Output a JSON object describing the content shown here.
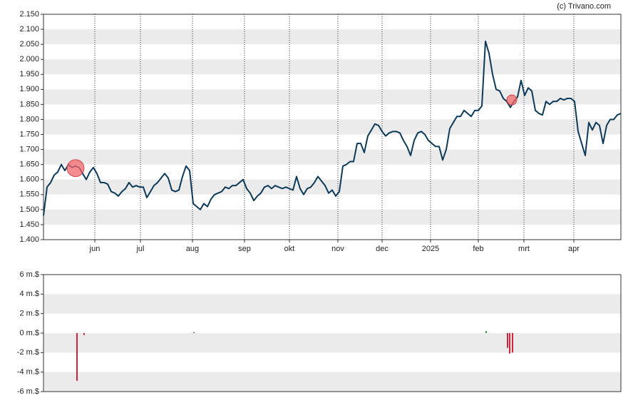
{
  "chart_data": [
    {
      "type": "line",
      "credit": "(c) Trivano.com",
      "color": "#0e3a5a",
      "values": [
        1.48,
        1.575,
        1.59,
        1.615,
        1.625,
        1.65,
        1.63,
        1.65,
        1.64,
        1.645,
        1.64,
        1.62,
        1.6,
        1.625,
        1.64,
        1.62,
        1.59,
        1.59,
        1.585,
        1.56,
        1.555,
        1.545,
        1.56,
        1.57,
        1.59,
        1.575,
        1.58,
        1.575,
        1.575,
        1.54,
        1.56,
        1.58,
        1.59,
        1.605,
        1.62,
        1.605,
        1.565,
        1.56,
        1.565,
        1.61,
        1.645,
        1.63,
        1.52,
        1.51,
        1.5,
        1.52,
        1.51,
        1.535,
        1.55,
        1.555,
        1.56,
        1.575,
        1.57,
        1.58,
        1.58,
        1.59,
        1.6,
        1.57,
        1.555,
        1.53,
        1.545,
        1.555,
        1.575,
        1.58,
        1.57,
        1.58,
        1.575,
        1.57,
        1.575,
        1.57,
        1.565,
        1.61,
        1.57,
        1.55,
        1.57,
        1.575,
        1.59,
        1.61,
        1.595,
        1.58,
        1.555,
        1.565,
        1.545,
        1.56,
        1.645,
        1.65,
        1.66,
        1.66,
        1.72,
        1.72,
        1.69,
        1.745,
        1.765,
        1.785,
        1.78,
        1.76,
        1.745,
        1.755,
        1.76,
        1.76,
        1.755,
        1.73,
        1.71,
        1.68,
        1.73,
        1.755,
        1.76,
        1.75,
        1.73,
        1.72,
        1.71,
        1.71,
        1.665,
        1.7,
        1.77,
        1.79,
        1.81,
        1.81,
        1.83,
        1.82,
        1.81,
        1.83,
        1.83,
        1.845,
        2.06,
        2.02,
        1.95,
        1.9,
        1.895,
        1.87,
        1.86,
        1.84,
        1.86,
        1.875,
        1.93,
        1.88,
        1.905,
        1.895,
        1.83,
        1.82,
        1.815,
        1.86,
        1.85,
        1.86,
        1.86,
        1.87,
        1.865,
        1.87,
        1.87,
        1.86,
        1.76,
        1.72,
        1.68,
        1.79,
        1.765,
        1.79,
        1.78,
        1.72,
        1.78,
        1.8,
        1.8,
        1.815,
        1.82
      ],
      "xlim": [
        0,
        162
      ],
      "xticks": [
        {
          "value": 14.4,
          "label": "jun"
        },
        {
          "value": 27.2,
          "label": "jul"
        },
        {
          "value": 41.8,
          "label": "aug"
        },
        {
          "value": 56.4,
          "label": "sep"
        },
        {
          "value": 69,
          "label": "okt"
        },
        {
          "value": 82.6,
          "label": "nov"
        },
        {
          "value": 95,
          "label": "dec"
        },
        {
          "value": 108.6,
          "label": "2025"
        },
        {
          "value": 122,
          "label": "feb"
        },
        {
          "value": 134.8,
          "label": "mrt"
        },
        {
          "value": 148.8,
          "label": "apr"
        }
      ],
      "ylim": [
        1.4,
        2.15
      ],
      "yticks": [
        {
          "value": 1.4,
          "label": "1.400"
        },
        {
          "value": 1.45,
          "label": "1.450"
        },
        {
          "value": 1.5,
          "label": "1.500"
        },
        {
          "value": 1.55,
          "label": "1.550"
        },
        {
          "value": 1.6,
          "label": "1.600"
        },
        {
          "value": 1.65,
          "label": "1.650"
        },
        {
          "value": 1.7,
          "label": "1.700"
        },
        {
          "value": 1.75,
          "label": "1.750"
        },
        {
          "value": 1.8,
          "label": "1.800"
        },
        {
          "value": 1.85,
          "label": "1.850"
        },
        {
          "value": 1.9,
          "label": "1.900"
        },
        {
          "value": 1.95,
          "label": "1.950"
        },
        {
          "value": 2.0,
          "label": "2.000"
        },
        {
          "value": 2.05,
          "label": "2.050"
        },
        {
          "value": 2.1,
          "label": "2.100"
        },
        {
          "value": 2.15,
          "label": "2.150"
        }
      ],
      "markers": {
        "x": [
          9,
          131.4
        ],
        "values": [
          1.638,
          1.865
        ],
        "sizes": [
          12,
          7
        ],
        "color": "#f0666e"
      },
      "grid": true
    },
    {
      "type": "bar",
      "x": [
        9.4,
        11.4,
        42.2,
        124.2,
        130.2,
        130.8,
        131.6
      ],
      "values": [
        -4.9,
        -0.2,
        0.1,
        0.2,
        -1.5,
        -2.1,
        -2.0
      ],
      "colors": [
        "#d0243a",
        "#d0243a",
        "#4d8a5a",
        "#2e9a4a",
        "#d0243a",
        "#d0243a",
        "#d0243a"
      ],
      "xlim": [
        0,
        162
      ],
      "ylim": [
        -6,
        6
      ],
      "yticks": [
        {
          "value": -6,
          "label": "-6 m.$"
        },
        {
          "value": -4,
          "label": "-4 m.$"
        },
        {
          "value": -2,
          "label": "-2 m.$"
        },
        {
          "value": 0,
          "label": "0 m.$"
        },
        {
          "value": 2,
          "label": "2 m.$"
        },
        {
          "value": 4,
          "label": "4 m.$"
        },
        {
          "value": 6,
          "label": "6 m.$"
        }
      ]
    }
  ]
}
